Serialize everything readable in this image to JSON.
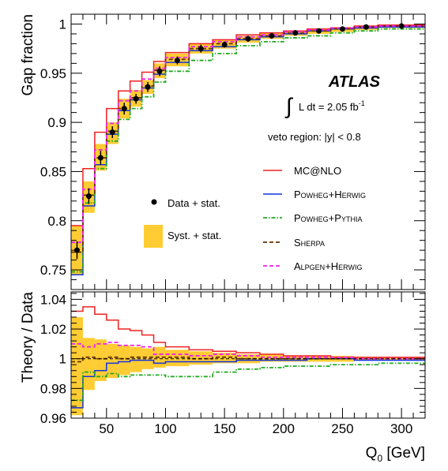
{
  "chart_data": [
    {
      "type": "step",
      "ylabel": "Gap fraction",
      "ylim": [
        0.73,
        1.01
      ],
      "yticks": [
        0.75,
        0.8,
        0.85,
        0.9,
        0.95,
        1
      ],
      "ytick_labels": [
        "0.75",
        "0.8",
        "0.85",
        "0.9",
        "0.95",
        "1"
      ],
      "xlim": [
        20,
        320
      ],
      "bin_edges": [
        20,
        30,
        40,
        50,
        60,
        70,
        80,
        90,
        100,
        120,
        140,
        160,
        180,
        200,
        220,
        240,
        260,
        280,
        320
      ],
      "data": {
        "name": "Data + stat.",
        "x": [
          25,
          35,
          45,
          55,
          65,
          75,
          85,
          95,
          110,
          130,
          150,
          170,
          190,
          210,
          230,
          250,
          270,
          300
        ],
        "y": [
          0.77,
          0.825,
          0.864,
          0.89,
          0.914,
          0.924,
          0.936,
          0.952,
          0.963,
          0.975,
          0.979,
          0.985,
          0.988,
          0.991,
          0.993,
          0.995,
          0.997,
          0.998
        ],
        "yerr": [
          0.009,
          0.008,
          0.007,
          0.006,
          0.006,
          0.005,
          0.005,
          0.005,
          0.004,
          0.004,
          0.003,
          0.003,
          0.003,
          0.002,
          0.002,
          0.002,
          0.002,
          0.002
        ]
      },
      "syst_band": {
        "name": "Syst. + stat.",
        "low": [
          0.745,
          0.808,
          0.851,
          0.878,
          0.904,
          0.916,
          0.929,
          0.945,
          0.957,
          0.97,
          0.975,
          0.981,
          0.985,
          0.988,
          0.99,
          0.992,
          0.994,
          0.996
        ],
        "high": [
          0.795,
          0.84,
          0.878,
          0.9,
          0.924,
          0.933,
          0.943,
          0.96,
          0.97,
          0.98,
          0.984,
          0.988,
          0.991,
          0.993,
          0.995,
          0.997,
          0.998,
          0.999
        ]
      },
      "series": [
        {
          "name": "MC@NLO",
          "color": "#ee2222",
          "dash": "solid",
          "y": [
            0.795,
            0.853,
            0.89,
            0.914,
            0.932,
            0.942,
            0.951,
            0.962,
            0.971,
            0.98,
            0.984,
            0.989,
            0.991,
            0.993,
            0.995,
            0.996,
            0.998,
            0.999
          ]
        },
        {
          "name": "Powheg+Herwig",
          "color": "#1133dd",
          "dash": "solid",
          "y": [
            0.745,
            0.815,
            0.857,
            0.888,
            0.912,
            0.923,
            0.935,
            0.949,
            0.961,
            0.973,
            0.977,
            0.984,
            0.987,
            0.99,
            0.993,
            0.995,
            0.996,
            0.997
          ]
        },
        {
          "name": "Powheg+Pythia",
          "color": "#22aa22",
          "dash": "dashdot",
          "y": [
            0.748,
            0.818,
            0.853,
            0.881,
            0.903,
            0.914,
            0.926,
            0.941,
            0.952,
            0.963,
            0.97,
            0.978,
            0.982,
            0.986,
            0.988,
            0.991,
            0.993,
            0.995
          ]
        },
        {
          "name": "Sherpa",
          "color": "#663300",
          "dash": "dashed",
          "y": [
            0.768,
            0.826,
            0.864,
            0.891,
            0.914,
            0.925,
            0.937,
            0.953,
            0.964,
            0.975,
            0.98,
            0.985,
            0.988,
            0.991,
            0.993,
            0.995,
            0.997,
            0.998
          ]
        },
        {
          "name": "Alpgen+Herwig",
          "color": "#ee22ee",
          "dash": "dashed",
          "y": [
            0.778,
            0.832,
            0.872,
            0.899,
            0.922,
            0.932,
            0.944,
            0.955,
            0.966,
            0.977,
            0.982,
            0.987,
            0.989,
            0.992,
            0.994,
            0.996,
            0.997,
            0.998
          ]
        }
      ],
      "annotations": {
        "experiment": "ATLAS",
        "lumi_integral": "∫",
        "lumi_text": "L dt = 2.05 fb",
        "lumi_sup": "-1",
        "veto_region": "veto region: |y| < 0.8"
      },
      "legend": {
        "data_label": "Data + stat.",
        "band_label": "Syst. + stat.",
        "entries": [
          {
            "main": "MC@NLO",
            "sc": ""
          },
          {
            "main": "P",
            "sc": "owheg",
            "main2": "+H",
            "sc2": "erwig"
          },
          {
            "main": "P",
            "sc": "owheg",
            "main2": "+P",
            "sc2": "ythia"
          },
          {
            "main": "S",
            "sc": "herpa",
            "main2": "",
            "sc2": ""
          },
          {
            "main": "A",
            "sc": "lpgen",
            "main2": "+H",
            "sc2": "erwig"
          }
        ]
      }
    },
    {
      "type": "ratio",
      "ylabel": "Theory / Data",
      "ylim": [
        0.96,
        1.045
      ],
      "yticks": [
        0.96,
        0.98,
        1,
        1.02,
        1.04
      ],
      "ytick_labels": [
        "0.96",
        "0.98",
        "1",
        "1.02",
        "1.04"
      ],
      "xlabel_main": "Q",
      "xlabel_sub": "0",
      "xlabel_unit": " [GeV]",
      "xticks": [
        50,
        100,
        150,
        200,
        250,
        300
      ],
      "xtick_labels": [
        "50",
        "100",
        "150",
        "200",
        "250",
        "300"
      ],
      "syst_band": {
        "low": [
          0.962,
          0.979,
          0.985,
          0.987,
          0.989,
          0.991,
          0.993,
          0.994,
          0.995,
          0.996,
          0.997,
          0.997,
          0.998,
          0.998,
          0.998,
          0.998,
          0.999,
          0.999
        ],
        "high": [
          1.028,
          1.014,
          1.013,
          1.01,
          1.009,
          1.008,
          1.007,
          1.008,
          1.006,
          1.005,
          1.004,
          1.003,
          1.003,
          1.002,
          1.002,
          1.002,
          1.001,
          1.001
        ]
      },
      "series": [
        {
          "name": "MC@NLO",
          "color": "#ee2222",
          "dash": "solid",
          "y": [
            1.032,
            1.035,
            1.03,
            1.026,
            1.02,
            1.019,
            1.016,
            1.011,
            1.008,
            1.006,
            1.005,
            1.004,
            1.003,
            1.002,
            1.002,
            1.001,
            1.001,
            1.001
          ]
        },
        {
          "name": "Powheg+Herwig",
          "color": "#1133dd",
          "dash": "solid",
          "y": [
            0.967,
            0.988,
            0.992,
            0.997,
            0.998,
            0.999,
            0.999,
            0.997,
            0.998,
            0.998,
            0.998,
            0.999,
            0.999,
            0.999,
            1.0,
            1.0,
            0.999,
            0.999
          ]
        },
        {
          "name": "Powheg+Pythia",
          "color": "#22aa22",
          "dash": "dashdot",
          "y": [
            0.972,
            0.991,
            0.988,
            0.99,
            0.988,
            0.989,
            0.989,
            0.989,
            0.988,
            0.988,
            0.991,
            0.993,
            0.994,
            0.995,
            0.995,
            0.996,
            0.996,
            0.997
          ]
        },
        {
          "name": "Sherpa",
          "color": "#663300",
          "dash": "dashed",
          "y": [
            0.998,
            1.001,
            1.0,
            1.001,
            1.0,
            1.001,
            1.001,
            1.001,
            1.001,
            1.0,
            1.001,
            1.0,
            1.0,
            1.0,
            1.0,
            1.0,
            1.0,
            1.0
          ]
        },
        {
          "name": "Alpgen+Herwig",
          "color": "#ee22ee",
          "dash": "dashed",
          "y": [
            1.01,
            1.008,
            1.01,
            1.011,
            1.009,
            1.009,
            1.008,
            1.003,
            1.003,
            1.002,
            1.003,
            1.002,
            1.001,
            1.001,
            1.001,
            1.001,
            1.0,
            1.0
          ]
        }
      ]
    }
  ]
}
